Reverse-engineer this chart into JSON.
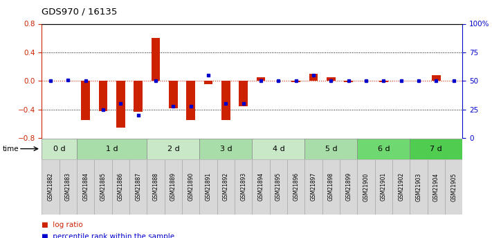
{
  "title": "GDS970 / 16135",
  "samples": [
    "GSM21882",
    "GSM21883",
    "GSM21884",
    "GSM21885",
    "GSM21886",
    "GSM21887",
    "GSM21888",
    "GSM21889",
    "GSM21890",
    "GSM21891",
    "GSM21892",
    "GSM21893",
    "GSM21894",
    "GSM21895",
    "GSM21896",
    "GSM21897",
    "GSM21898",
    "GSM21899",
    "GSM21900",
    "GSM21901",
    "GSM21902",
    "GSM21903",
    "GSM21904",
    "GSM21905"
  ],
  "log_ratio": [
    0.0,
    0.0,
    -0.55,
    -0.42,
    -0.65,
    -0.43,
    0.6,
    -0.38,
    -0.55,
    -0.05,
    -0.55,
    -0.35,
    0.05,
    0.0,
    -0.02,
    0.1,
    0.05,
    -0.02,
    0.0,
    -0.02,
    0.0,
    0.0,
    0.08,
    0.0
  ],
  "percentile_rank": [
    50,
    51,
    50,
    25,
    30,
    20,
    50,
    28,
    28,
    55,
    30,
    30,
    50,
    50,
    50,
    55,
    50,
    50,
    50,
    50,
    50,
    50,
    50,
    50
  ],
  "time_groups": [
    {
      "label": "0 d",
      "start": 0,
      "end": 1,
      "color": "#c8e8c8"
    },
    {
      "label": "1 d",
      "start": 2,
      "end": 5,
      "color": "#a8dca8"
    },
    {
      "label": "2 d",
      "start": 6,
      "end": 8,
      "color": "#c8e8c8"
    },
    {
      "label": "3 d",
      "start": 9,
      "end": 11,
      "color": "#a8dca8"
    },
    {
      "label": "4 d",
      "start": 12,
      "end": 14,
      "color": "#c8e8c8"
    },
    {
      "label": "5 d",
      "start": 15,
      "end": 17,
      "color": "#a8dca8"
    },
    {
      "label": "6 d",
      "start": 18,
      "end": 20,
      "color": "#70d870"
    },
    {
      "label": "7 d",
      "start": 21,
      "end": 23,
      "color": "#50cc50"
    }
  ],
  "ylim": [
    -0.8,
    0.8
  ],
  "yticks_left": [
    -0.8,
    -0.4,
    0.0,
    0.4,
    0.8
  ],
  "yticks_right": [
    0,
    25,
    50,
    75,
    100
  ],
  "ytick_right_labels": [
    "0",
    "25",
    "50",
    "75",
    "100%"
  ],
  "bar_color": "#cc2200",
  "dot_color": "#0000cc",
  "bg_color": "#ffffff",
  "cell_color": "#d8d8d8",
  "cell_edge_color": "#aaaaaa",
  "legend_log_ratio": "log ratio",
  "legend_percentile": "percentile rank within the sample",
  "figsize": [
    7.11,
    3.45
  ],
  "dpi": 100
}
